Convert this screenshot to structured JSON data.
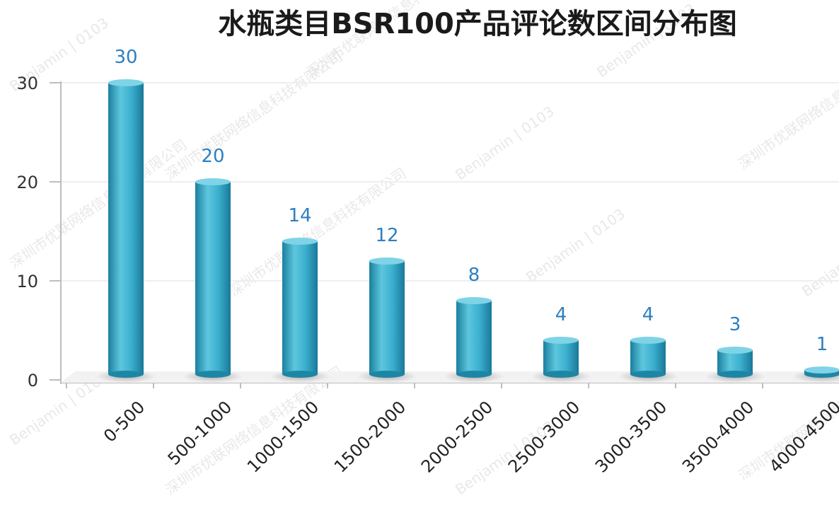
{
  "chart_data": {
    "type": "bar",
    "title": "水瓶类目BSR100产品评论数区间分布图",
    "categories": [
      "0-500",
      "500-1000",
      "1000-1500",
      "1500-2000",
      "2000-2500",
      "2500-3000",
      "3000-3500",
      "3500-4000",
      "4000-4500"
    ],
    "values": [
      30,
      20,
      14,
      12,
      8,
      4,
      4,
      3,
      1
    ],
    "xlabel": "",
    "ylabel": "",
    "ylim": [
      0,
      30
    ],
    "yticks": [
      0,
      10,
      20,
      30
    ],
    "grid": true,
    "legend": "none",
    "bar_color": "#2fa3c6",
    "label_color": "#2e7fc0"
  },
  "watermarks": [
    "深圳市优联网络信息科技有限公司",
    "Benjamin | 0103"
  ],
  "colors": {
    "bar_dark": "#1b7f9e",
    "bar_light": "#5ec6de",
    "bar_top": "#7fd3e6"
  }
}
